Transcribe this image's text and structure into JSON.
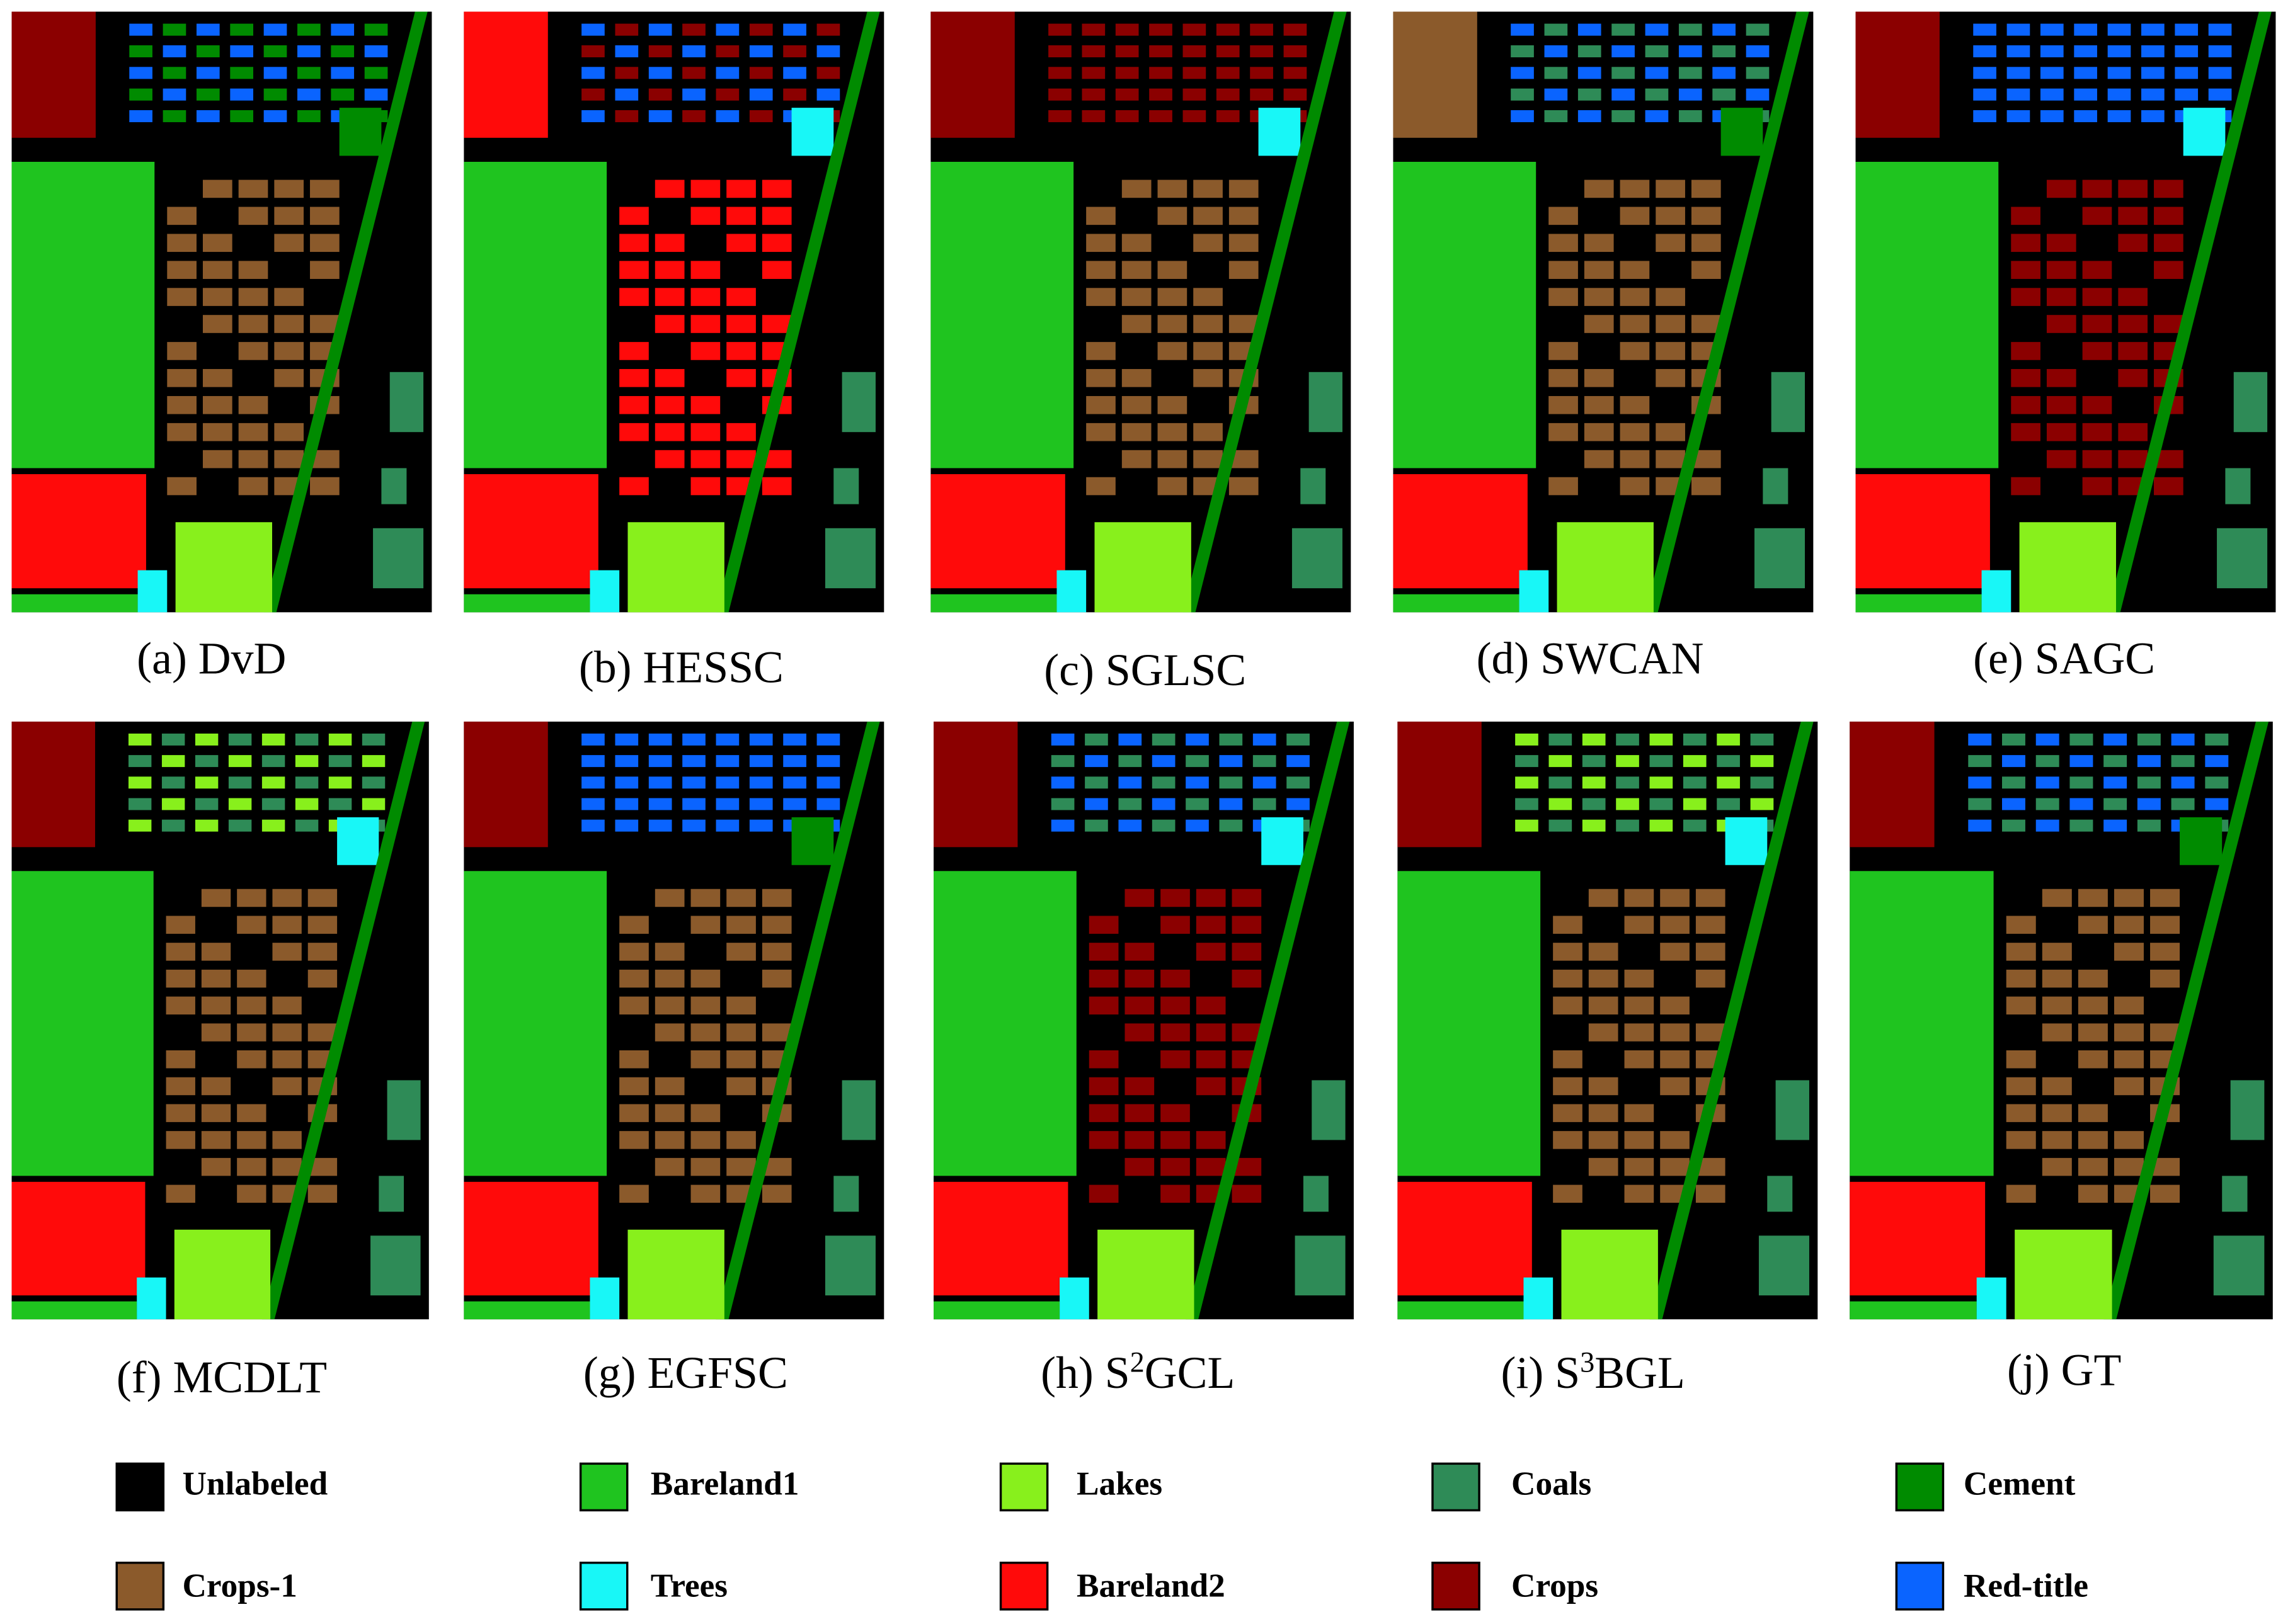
{
  "panels": [
    {
      "caption": "(a) DvD"
    },
    {
      "caption": "(b) HESSC"
    },
    {
      "caption": "(c) SGLSC"
    },
    {
      "caption": "(d) SWCAN"
    },
    {
      "caption": "(e) SAGC"
    },
    {
      "caption": "(f) MCDLT"
    },
    {
      "caption": "(g)  EGFSC"
    },
    {
      "caption": {
        "base": "(h) S",
        "sup": "2",
        "tail": "GCL"
      }
    },
    {
      "caption": {
        "base": "(i) S",
        "sup": "3",
        "tail": "BGL"
      }
    },
    {
      "caption": "(j) GT"
    }
  ],
  "legend": [
    {
      "name": "Unlabeled",
      "color": "#000000"
    },
    {
      "name": "Bareland1",
      "color": "#1fc41f"
    },
    {
      "name": "Lakes",
      "color": "#88f01c"
    },
    {
      "name": "Coals",
      "color": "#2e8b57"
    },
    {
      "name": "Cement",
      "color": "#008b00"
    },
    {
      "name": "Crops-1",
      "color": "#8b5a2b"
    },
    {
      "name": "Trees",
      "color": "#18f7f7"
    },
    {
      "name": "Bareland2",
      "color": "#ff0a0a"
    },
    {
      "name": "Crops",
      "color": "#8b0000"
    },
    {
      "name": "Red-title",
      "color": "#0a64ff"
    }
  ]
}
